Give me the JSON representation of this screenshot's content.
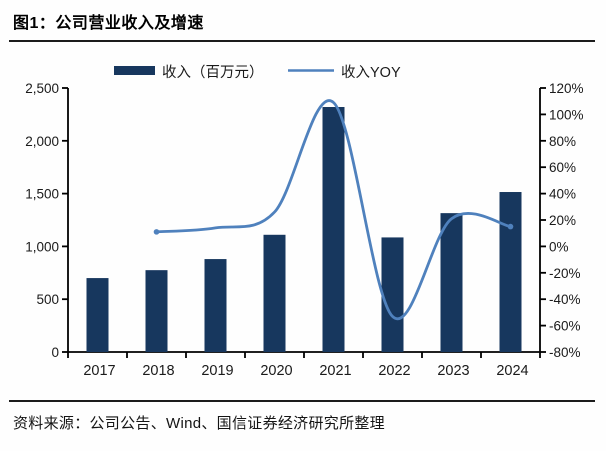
{
  "figure": {
    "title": "图1：公司营业收入及增速",
    "source": "资料来源：公司公告、Wind、国信证券经济研究所整理"
  },
  "chart_data": {
    "type": "combo",
    "title": "公司营业收入及增速",
    "categories": [
      "2017",
      "2018",
      "2019",
      "2020",
      "2021",
      "2022",
      "2023",
      "2024"
    ],
    "series": [
      {
        "name": "收入（百万元）",
        "type": "bar",
        "axis": "left",
        "color": "#17375E",
        "values": [
          700,
          775,
          880,
          1110,
          2320,
          1085,
          1315,
          1515
        ]
      },
      {
        "name": "收入YOY",
        "type": "line",
        "axis": "right",
        "unit": "%",
        "color": "#4F81BD",
        "values": [
          null,
          11,
          14,
          26,
          109,
          -53,
          21,
          15
        ]
      }
    ],
    "left_axis": {
      "min": 0,
      "max": 2500,
      "step": 500,
      "tick_labels": [
        "0",
        "500",
        "1,000",
        "1,500",
        "2,000",
        "2,500"
      ]
    },
    "right_axis": {
      "min": -80,
      "max": 120,
      "step": 20,
      "unit": "%",
      "tick_labels": [
        "-80%",
        "-60%",
        "-40%",
        "-20%",
        "0%",
        "20%",
        "40%",
        "60%",
        "80%",
        "100%",
        "120%"
      ]
    },
    "legend": {
      "position": "top",
      "entries": [
        {
          "label": "收入（百万元）",
          "marker": "bar-swatch",
          "color": "#17375E"
        },
        {
          "label": "收入YOY",
          "marker": "line-swatch",
          "color": "#4F81BD"
        }
      ]
    },
    "grid": false,
    "axis_color": "#000000",
    "text_color": "#1a1a1a"
  }
}
